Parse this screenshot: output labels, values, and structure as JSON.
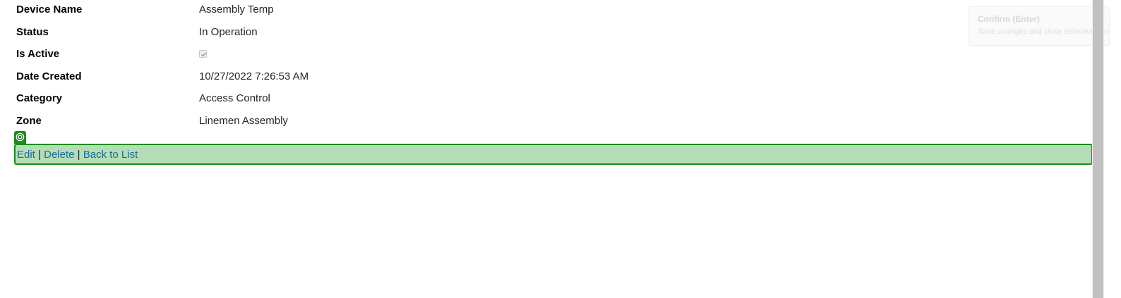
{
  "details": [
    {
      "label": "Device Name",
      "value": "Assembly Temp"
    },
    {
      "label": "Status",
      "value": "In Operation"
    },
    {
      "label": "Is Active",
      "checked": true
    },
    {
      "label": "Date Created",
      "value": "10/27/2022 7:26:53 AM"
    },
    {
      "label": "Category",
      "value": "Access Control"
    },
    {
      "label": "Zone",
      "value": "Linemen Assembly"
    }
  ],
  "actions": {
    "edit": "Edit",
    "delete": "Delete",
    "back": "Back to List",
    "separator": "|"
  },
  "tooltip": {
    "title": "Confirm (Enter)",
    "description": "Save changes and close selection window"
  },
  "colors": {
    "highlight_border": "#1c8a1c",
    "highlight_fill": "#b5ddb5",
    "link": "#1b6a9a"
  },
  "icons": {
    "marker": "target-icon",
    "checkbox": "checkmark-icon"
  }
}
